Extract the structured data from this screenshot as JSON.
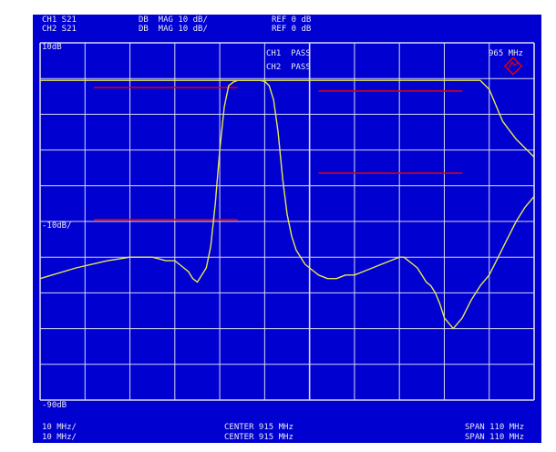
{
  "header": {
    "ch1": {
      "trace": "CH1 S21",
      "format": "DB  MAG 10 dB/",
      "ref": "REF 0 dB"
    },
    "ch2": {
      "trace": "CH2 S21",
      "format": "DB  MAG 10 dB/",
      "ref": "REF 0 dB"
    }
  },
  "status": {
    "ch1": "CH1  PASS",
    "ch2": "CH2  PASS"
  },
  "marker_freq": "965 MHz",
  "footer": {
    "left1": "10 MHz/",
    "left2": "10 MHz/",
    "center1": "CENTER 915 MHz",
    "center2": "CENTER 915 MHz",
    "right1": "SPAN 110 MHz",
    "right2": "SPAN 110 MHz"
  },
  "colors": {
    "background": "#0000d0",
    "grid": "#d8d8f0",
    "trace": "#e8e850",
    "limit": "#e00000",
    "logo": "#e00000"
  },
  "chart_data": {
    "type": "line",
    "xlabel": "",
    "ylabel": "",
    "xlim": [
      860,
      970
    ],
    "ylim": [
      -90,
      10
    ],
    "tick_labels": {
      "top": "10dB",
      "middle": "-10dB/",
      "bottom": "-90dB"
    },
    "grid": true,
    "series": [
      {
        "name": "CH1 S21",
        "x": [
          860,
          868,
          875,
          880,
          885,
          888,
          890,
          891,
          892,
          893,
          894,
          895,
          896,
          897,
          898,
          899,
          900,
          901,
          902,
          903,
          904,
          905,
          906,
          907,
          908,
          909,
          910,
          912,
          914,
          916,
          918,
          920,
          924,
          926,
          928,
          930,
          932,
          934,
          936,
          938,
          940,
          942,
          944,
          946,
          948,
          950,
          952,
          955,
          958,
          960,
          963,
          966,
          970
        ],
        "y": [
          -56,
          -53,
          -51,
          -50,
          -50,
          -51,
          -51,
          -52,
          -53,
          -54,
          -56,
          -57,
          -55,
          -53,
          -47,
          -35,
          -20,
          -8,
          -2,
          -1,
          -0.5,
          -0.5,
          -0.5,
          -0.5,
          -0.5,
          -0.5,
          -0.5,
          -0.5,
          -0.5,
          -0.5,
          -0.5,
          -0.5,
          -0.5,
          -0.5,
          -0.5,
          -0.5,
          -0.5,
          -0.5,
          -0.5,
          -0.5,
          -0.5,
          -0.5,
          -0.5,
          -0.5,
          -0.5,
          -0.5,
          -0.5,
          -0.5,
          -0.5,
          -3,
          -12,
          -17,
          -22
        ]
      },
      {
        "name": "CH2 S21",
        "x": [
          860,
          870,
          880,
          885,
          890,
          895,
          896,
          897,
          898,
          899,
          900,
          901,
          902,
          903,
          904,
          905,
          906,
          907,
          908,
          909,
          910,
          911,
          912,
          913,
          914,
          915,
          916,
          917,
          918,
          919,
          920,
          922,
          924,
          926,
          928,
          930,
          932,
          934,
          936,
          938,
          940,
          941,
          942,
          943,
          944,
          945,
          946,
          947,
          948,
          949,
          950,
          952,
          954,
          956,
          958,
          960,
          962,
          964,
          966,
          968,
          970
        ],
        "y": [
          -0.5,
          -0.5,
          -0.5,
          -0.5,
          -0.5,
          -0.5,
          -0.5,
          -0.5,
          -0.5,
          -0.5,
          -0.5,
          -0.5,
          -0.5,
          -0.5,
          -0.5,
          -0.5,
          -0.5,
          -0.5,
          -0.5,
          -0.5,
          -0.8,
          -2,
          -6,
          -15,
          -28,
          -38,
          -44,
          -48,
          -50,
          -52,
          -53,
          -55,
          -56,
          -56,
          -55,
          -55,
          -54,
          -53,
          -52,
          -51,
          -50,
          -50,
          -51,
          -52,
          -53,
          -55,
          -57,
          -58,
          -60,
          -63,
          -67,
          -70,
          -67,
          -62,
          -58,
          -55,
          -50,
          -45,
          -40,
          -36,
          -33
        ]
      }
    ],
    "limit_lines": [
      {
        "channel": "CH1",
        "x": [
          872,
          904
        ],
        "y": -2.5
      },
      {
        "channel": "CH1",
        "x": [
          922,
          954
        ],
        "y": -3.5
      },
      {
        "channel": "CH2",
        "x": [
          872,
          904
        ],
        "y": -39.5
      },
      {
        "channel": "CH2",
        "x": [
          922,
          954
        ],
        "y": -26.5
      }
    ]
  }
}
